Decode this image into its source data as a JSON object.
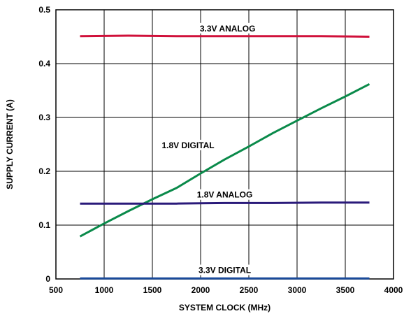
{
  "chart_data": {
    "type": "line",
    "xlabel": "SYSTEM CLOCK (MHz)",
    "ylabel": "SUPPLY CURRENT (A)",
    "xlim": [
      500,
      4000
    ],
    "ylim": [
      0,
      0.5
    ],
    "xticks": [
      500,
      1000,
      1500,
      2000,
      2500,
      3000,
      3500,
      4000
    ],
    "yticks": [
      0,
      0.1,
      0.2,
      0.3,
      0.4,
      0.5
    ],
    "xtick_labels": [
      "500",
      "1000",
      "1500",
      "2000",
      "2500",
      "3000",
      "3500",
      "4000"
    ],
    "ytick_labels": [
      "0",
      "0.1",
      "0.2",
      "0.3",
      "0.4",
      "0.5"
    ],
    "grid": true,
    "series": [
      {
        "name": "3.3V ANALOG",
        "color": "#d0103a",
        "x": [
          750,
          1250,
          1750,
          2250,
          2750,
          3250,
          3750
        ],
        "y": [
          0.451,
          0.452,
          0.451,
          0.451,
          0.451,
          0.451,
          0.45
        ]
      },
      {
        "name": "1.8V DIGITAL",
        "color": "#0a8a4a",
        "x": [
          750,
          1000,
          1250,
          1500,
          1750,
          2000,
          2250,
          2500,
          2750,
          3000,
          3250,
          3500,
          3750
        ],
        "y": [
          0.079,
          0.103,
          0.126,
          0.148,
          0.169,
          0.196,
          0.222,
          0.246,
          0.271,
          0.294,
          0.317,
          0.339,
          0.362
        ]
      },
      {
        "name": "1.8V ANALOG",
        "color": "#2a1a7a",
        "x": [
          750,
          1250,
          1750,
          2250,
          2750,
          3250,
          3750
        ],
        "y": [
          0.14,
          0.14,
          0.14,
          0.141,
          0.141,
          0.142,
          0.142
        ]
      },
      {
        "name": "3.3V DIGITAL",
        "color": "#1a4a9a",
        "x": [
          750,
          1250,
          1750,
          2250,
          2750,
          3250,
          3750
        ],
        "y": [
          0.001,
          0.001,
          0.001,
          0.001,
          0.001,
          0.001,
          0.001
        ]
      }
    ],
    "annotations": [
      {
        "text": "3.3V ANALOG",
        "x": 2280,
        "y": 0.46
      },
      {
        "text": "1.8V DIGITAL",
        "x": 1870,
        "y": 0.243
      },
      {
        "text": "1.8V ANALOG",
        "x": 2250,
        "y": 0.151
      },
      {
        "text": "3.3V DIGITAL",
        "x": 2250,
        "y": 0.011
      }
    ]
  }
}
